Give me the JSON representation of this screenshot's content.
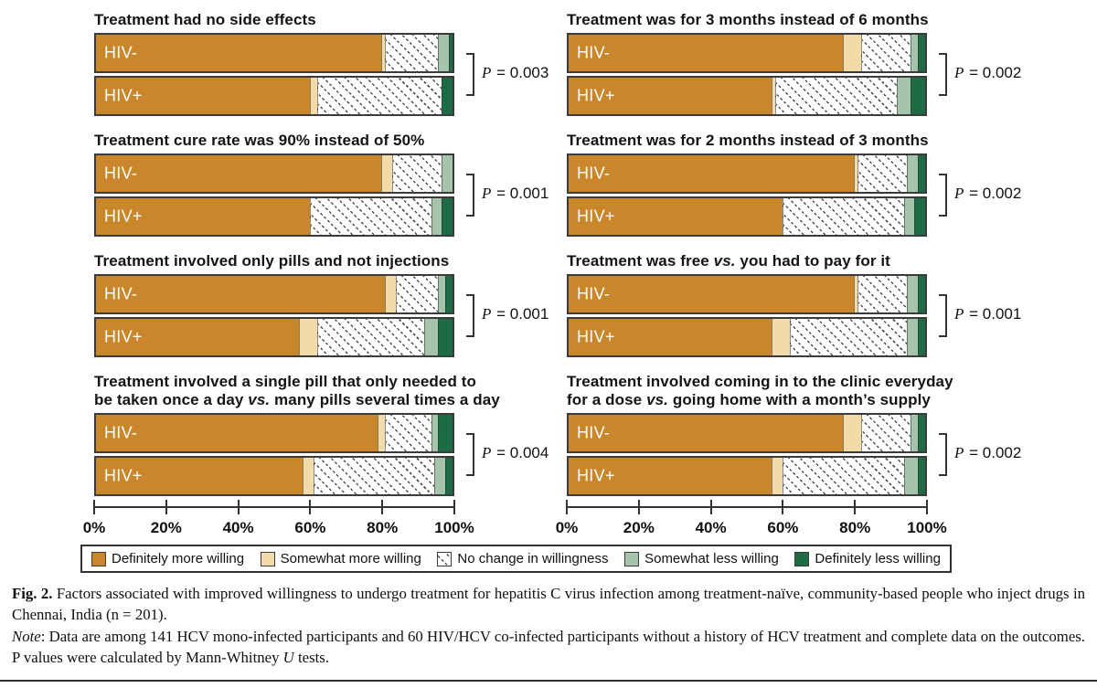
{
  "figure": {
    "colors": {
      "definitely_more_willing": "#C9862B",
      "somewhat_more_willing": "#F1DCA9",
      "no_change_background": "#FFFFFF",
      "no_change_hatch_dot": "#4F4F4F",
      "somewhat_less_willing": "#A6C4AC",
      "definitely_less_willing": "#1E6B45",
      "bar_border": "#3B3B3B"
    },
    "legend": {
      "items": [
        {
          "label": "Definitely more willing",
          "swatch": "definitely-more-swatch",
          "fill": "#C9862B"
        },
        {
          "label": "Somewhat more willing",
          "swatch": "somewhat-more-swatch",
          "fill": "#F1DCA9"
        },
        {
          "label": "No change in willingness",
          "swatch": "no-change-swatch",
          "fill": "hatch"
        },
        {
          "label": "Somewhat less willing",
          "swatch": "somewhat-less-swatch",
          "fill": "#A6C4AC"
        },
        {
          "label": "Definitely less willing",
          "swatch": "definitely-less-swatch",
          "fill": "#1E6B45"
        }
      ]
    }
  },
  "chart_data": {
    "type": "bar",
    "orientation": "horizontal",
    "stacked": true,
    "unit": "percent",
    "xlim": [
      0,
      100
    ],
    "x_tick_labels": [
      "0%",
      "20%",
      "40%",
      "60%",
      "80%",
      "100%"
    ],
    "legend_position": "bottom",
    "segments": [
      "Definitely more willing",
      "Somewhat more willing",
      "No change in willingness",
      "Somewhat less willing",
      "Definitely less willing"
    ],
    "panels": [
      {
        "title_lines": [
          "Treatment had no side effects"
        ],
        "p_label": "P = 0.003",
        "rows": [
          {
            "label": "HIV-",
            "values": [
              80,
              1,
              15,
              3,
              1
            ]
          },
          {
            "label": "HIV+",
            "values": [
              60,
              2,
              35,
              0,
              3
            ]
          }
        ]
      },
      {
        "title_lines": [
          "Treatment was for 3 months instead of 6 months"
        ],
        "p_label": "P = 0.002",
        "rows": [
          {
            "label": "HIV-",
            "values": [
              77,
              5,
              14,
              2,
              2
            ]
          },
          {
            "label": "HIV+",
            "values": [
              57,
              1,
              34,
              4,
              4
            ]
          }
        ]
      },
      {
        "title_lines": [
          "Treatment cure rate was 90% instead of 50%"
        ],
        "p_label": "P = 0.001",
        "rows": [
          {
            "label": "HIV-",
            "values": [
              80,
              3,
              14,
              3,
              0
            ]
          },
          {
            "label": "HIV+",
            "values": [
              60,
              0,
              34,
              3,
              3
            ]
          }
        ]
      },
      {
        "title_lines": [
          "Treatment was for 2 months instead of 3 months"
        ],
        "p_label": "P = 0.002",
        "rows": [
          {
            "label": "HIV-",
            "values": [
              80,
              1,
              14,
              3,
              2
            ]
          },
          {
            "label": "HIV+",
            "values": [
              60,
              0,
              34,
              3,
              3
            ]
          }
        ]
      },
      {
        "title_lines": [
          "Treatment involved only pills and not injections"
        ],
        "p_label": "P = 0.001",
        "rows": [
          {
            "label": "HIV-",
            "values": [
              81,
              3,
              12,
              2,
              2
            ]
          },
          {
            "label": "HIV+",
            "values": [
              57,
              5,
              30,
              4,
              4
            ]
          }
        ]
      },
      {
        "title_lines": [
          "Treatment was free vs. you had to pay for it"
        ],
        "p_label": "P = 0.001",
        "rows": [
          {
            "label": "HIV-",
            "values": [
              80,
              1,
              14,
              3,
              2
            ]
          },
          {
            "label": "HIV+",
            "values": [
              57,
              5,
              33,
              3,
              2
            ]
          }
        ]
      },
      {
        "title_lines": [
          "Treatment involved a single pill that only needed to",
          "be taken once a day vs. many pills several times a day"
        ],
        "p_label": "P = 0.004",
        "rows": [
          {
            "label": "HIV-",
            "values": [
              79,
              2,
              13,
              2,
              4
            ]
          },
          {
            "label": "HIV+",
            "values": [
              58,
              3,
              34,
              3,
              2
            ]
          }
        ]
      },
      {
        "title_lines": [
          "Treatment involved coming in to the clinic everyday",
          "for a dose vs. going home with a month’s supply"
        ],
        "p_label": "P = 0.002",
        "rows": [
          {
            "label": "HIV-",
            "values": [
              77,
              5,
              14,
              2,
              2
            ]
          },
          {
            "label": "HIV+",
            "values": [
              57,
              3,
              34,
              4,
              2
            ]
          }
        ]
      }
    ]
  },
  "caption": {
    "fig_paragraph": [
      {
        "t": "Fig. 2.",
        "s": "b"
      },
      {
        "t": " Factors associated with improved willingness to undergo treatment for hepatitis C virus infection among treatment-naïve, community-based people who inject drugs in Chennai, India (n = 201).",
        "s": "n"
      }
    ],
    "note_paragraph": [
      {
        "t": "Note",
        "s": "i"
      },
      {
        "t": ": Data are among 141 HCV mono-infected participants and 60 HIV/HCV co-infected participants without a history of HCV treatment and complete data on the outcomes. P values were calculated by Mann-Whitney ",
        "s": "n"
      },
      {
        "t": "U",
        "s": "i"
      },
      {
        "t": " tests.",
        "s": "n"
      }
    ]
  }
}
